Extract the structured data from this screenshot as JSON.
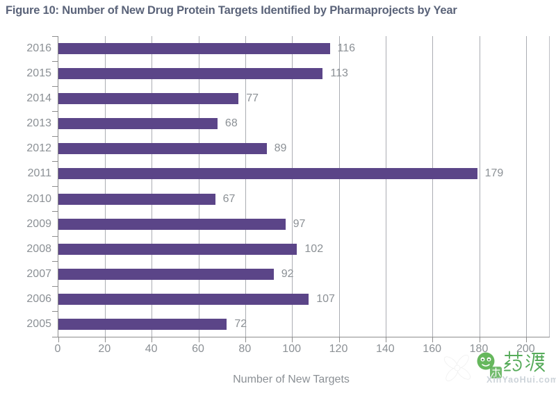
{
  "figure": {
    "title": "Figure 10: Number of New Drug Protein Targets Identified by Pharmaprojects by Year"
  },
  "chart_data": {
    "type": "bar",
    "orientation": "horizontal",
    "title": "Figure 10: Number of New Drug Protein Targets Identified by Pharmaprojects by Year",
    "categories": [
      "2016",
      "2015",
      "2014",
      "2013",
      "2012",
      "2011",
      "2010",
      "2009",
      "2008",
      "2007",
      "2006",
      "2005"
    ],
    "values": [
      116,
      113,
      77,
      68,
      89,
      179,
      67,
      97,
      102,
      92,
      107,
      72
    ],
    "xlabel": "Number of New Targets",
    "ylabel": "",
    "xlim": [
      0,
      210
    ],
    "xticks": [
      0,
      20,
      40,
      60,
      80,
      100,
      120,
      140,
      160,
      180,
      200
    ],
    "grid": "vertical",
    "legend": "none",
    "data_labels": true,
    "bar_color": "#5b4588"
  },
  "watermark": {
    "brand_text": "药渡",
    "url_text": "XinYaoHui.com",
    "accent_green": "#3fa044"
  },
  "colors": {
    "bar": "#5b4588",
    "title_text": "#5a6379",
    "axis_text": "#8b9095",
    "gridline": "#aaacb2",
    "axis_line": "#8c8c8c"
  }
}
